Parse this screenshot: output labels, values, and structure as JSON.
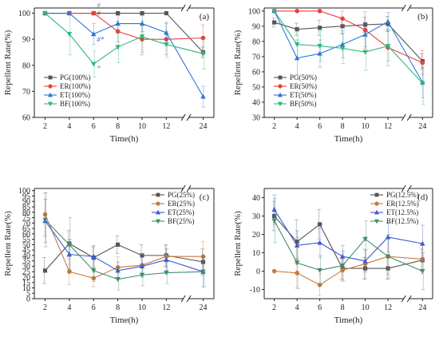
{
  "chart_data": [
    {
      "type": "line",
      "panel_label": "(a)",
      "xlabel": "Time(h)",
      "ylabel": "Repellent Rate(%)",
      "x": [
        2,
        4,
        6,
        8,
        10,
        12,
        24
      ],
      "x_tick_labels": [
        "2",
        "4",
        "6",
        "8",
        "10",
        "12",
        "24"
      ],
      "x_axis_break": "between 12 and 24",
      "ylim": [
        60,
        102
      ],
      "y_ticks": [
        60,
        70,
        80,
        90,
        100
      ],
      "y_tick_labels": [
        "60",
        "70",
        "80",
        "90",
        "100"
      ],
      "grid": false,
      "legend_position": "lower-left",
      "series": [
        {
          "name": "PG(100%)",
          "color": "#555555",
          "marker": "square",
          "values": [
            100,
            100,
            100,
            100,
            100,
            100,
            85
          ],
          "errors": [
            0,
            0,
            0,
            0,
            0,
            0,
            2
          ]
        },
        {
          "name": "ER(100%)",
          "color": "#e8413c",
          "marker": "circle",
          "values": [
            100,
            100,
            100,
            93,
            90,
            90,
            90.5
          ],
          "errors": [
            0,
            0,
            0,
            4,
            6,
            6,
            5
          ]
        },
        {
          "name": "ET(100%)",
          "color": "#2f74d8",
          "marker": "triangle-up",
          "values": [
            100,
            100,
            92,
            96,
            96,
            92.5,
            68
          ],
          "errors": [
            0,
            0,
            4,
            3,
            3,
            4,
            4
          ]
        },
        {
          "name": "BF(100%)",
          "color": "#2fb87c",
          "marker": "triangle-down",
          "values": [
            100,
            92,
            80.5,
            87,
            91,
            88,
            84.5
          ],
          "errors": [
            0,
            8,
            5,
            6,
            6,
            5,
            6
          ]
        }
      ],
      "annotations": [
        {
          "text": "#",
          "x": 6,
          "y": 102,
          "color": "#8a8a8a"
        },
        {
          "text": "#",
          "x": 6,
          "y": 99,
          "color": "#e8413c"
        },
        {
          "text": "#*",
          "x": 6,
          "y": 89,
          "color": "#2f74d8"
        },
        {
          "text": "*",
          "x": 6,
          "y": 78,
          "color": "#2fb87c"
        }
      ]
    },
    {
      "type": "line",
      "panel_label": "(b)",
      "xlabel": "Time(h)",
      "ylabel": "Repellent Rate(%)",
      "x": [
        2,
        4,
        6,
        8,
        10,
        12,
        24
      ],
      "x_tick_labels": [
        "2",
        "4",
        "6",
        "8",
        "10",
        "12",
        "24"
      ],
      "x_axis_break": "between 12 and 24",
      "ylim": [
        30,
        102
      ],
      "y_ticks": [
        30,
        40,
        50,
        60,
        70,
        80,
        90,
        100
      ],
      "y_tick_labels": [
        "30",
        "40",
        "50",
        "60",
        "70",
        "80",
        "90",
        "100"
      ],
      "grid": false,
      "legend_position": "lower-left",
      "series": [
        {
          "name": "PG(50%)",
          "color": "#555555",
          "marker": "square",
          "values": [
            92.5,
            88,
            89,
            90,
            91,
            91.5,
            67
          ],
          "errors": [
            3,
            4,
            5,
            5,
            5,
            5,
            5
          ]
        },
        {
          "name": "ER(50%)",
          "color": "#e8413c",
          "marker": "circle",
          "values": [
            100,
            100,
            100,
            95,
            87.5,
            76,
            66
          ],
          "errors": [
            0,
            0,
            0,
            5,
            12,
            12,
            8
          ]
        },
        {
          "name": "ET(50%)",
          "color": "#2f74d8",
          "marker": "triangle-up",
          "values": [
            100,
            69,
            72,
            78,
            84.5,
            93,
            53
          ],
          "errors": [
            0,
            12,
            9,
            9,
            8,
            6,
            10
          ]
        },
        {
          "name": "BF(50%)",
          "color": "#2fb87c",
          "marker": "triangle-down",
          "values": [
            100,
            78,
            77,
            75.5,
            73,
            77,
            52.5
          ],
          "errors": [
            0,
            10,
            10,
            10,
            12,
            10,
            14
          ]
        }
      ]
    },
    {
      "type": "line",
      "panel_label": "(c)",
      "xlabel": "Time(h)",
      "ylabel": "Repellent Rate(%)",
      "x": [
        2,
        4,
        6,
        8,
        10,
        12,
        24
      ],
      "x_tick_labels": [
        "2",
        "4",
        "6",
        "8",
        "10",
        "12",
        "24"
      ],
      "x_axis_break": "between 12 and 24",
      "ylim": [
        0,
        102
      ],
      "y_ticks": [
        0,
        5,
        10,
        15,
        20,
        25,
        30,
        35,
        40,
        45,
        50,
        55,
        60,
        65,
        70,
        75,
        80,
        85,
        90,
        95,
        100
      ],
      "y_tick_labels": [
        "0",
        "5",
        "10",
        "15",
        "20",
        "25",
        "30",
        "35",
        "40",
        "45",
        "50",
        "55",
        "60",
        "65",
        "70",
        "75",
        "80",
        "85",
        "90",
        "95",
        "100"
      ],
      "grid": false,
      "legend_position": "top-right",
      "series": [
        {
          "name": "PG(25%)",
          "color": "#555555",
          "marker": "square",
          "values": [
            26,
            51,
            38,
            50,
            40,
            40,
            34
          ],
          "errors": [
            12,
            12,
            10,
            8,
            10,
            10,
            12
          ]
        },
        {
          "name": "ER(25%)",
          "color": "#c87a3c",
          "marker": "circle",
          "values": [
            78,
            25,
            19,
            29,
            31,
            39,
            39
          ],
          "errors": [
            20,
            12,
            8,
            10,
            10,
            10,
            14
          ]
        },
        {
          "name": "ET(25%)",
          "color": "#4057d8",
          "marker": "triangle-up",
          "values": [
            72,
            41,
            39,
            26,
            30,
            36,
            25
          ],
          "errors": [
            20,
            14,
            10,
            8,
            10,
            10,
            14
          ]
        },
        {
          "name": "BF(25%)",
          "color": "#3f8f6b",
          "marker": "triangle-down",
          "values": [
            73,
            50,
            26,
            18,
            22,
            24,
            25
          ],
          "errors": [
            25,
            25,
            10,
            10,
            10,
            10,
            14
          ]
        }
      ]
    },
    {
      "type": "line",
      "panel_label": "(d)",
      "xlabel": "Time(h)",
      "ylabel": "Repellent Rate(%)",
      "x": [
        2,
        4,
        6,
        8,
        10,
        12,
        24
      ],
      "x_tick_labels": [
        "2",
        "4",
        "6",
        "8",
        "10",
        "12",
        "24"
      ],
      "x_axis_break": "between 12 and 24",
      "ylim": [
        -15,
        45
      ],
      "y_ticks": [
        -10,
        0,
        10,
        20,
        30,
        40
      ],
      "y_tick_labels": [
        "-10",
        "0",
        "10",
        "20",
        "30",
        "40"
      ],
      "grid": false,
      "legend_position": "top-right",
      "series": [
        {
          "name": "PG(12.5%)",
          "color": "#555555",
          "marker": "square",
          "values": [
            30,
            16,
            25.5,
            1.5,
            1.5,
            1.5,
            6
          ],
          "errors": [
            8,
            12,
            8,
            6,
            6,
            6,
            6
          ]
        },
        {
          "name": "ER(12.5%)",
          "color": "#c87a3c",
          "marker": "circle",
          "values": [
            0,
            -1,
            -7.5,
            0.5,
            4,
            8,
            6.5
          ],
          "errors": [
            0,
            8,
            6,
            6,
            8,
            10,
            8
          ]
        },
        {
          "name": "ET(12.5%)",
          "color": "#4057d8",
          "marker": "triangle-up",
          "values": [
            33.5,
            14,
            15.5,
            8,
            5.5,
            18.5,
            15
          ],
          "errors": [
            8,
            8,
            8,
            6,
            6,
            8,
            10
          ]
        },
        {
          "name": "BF(12.5%)",
          "color": "#3f8f6b",
          "marker": "triangle-down",
          "values": [
            27.5,
            4.5,
            0.5,
            3,
            17.5,
            8,
            0
          ],
          "errors": [
            12,
            14,
            8,
            8,
            10,
            12,
            10
          ]
        }
      ]
    }
  ]
}
